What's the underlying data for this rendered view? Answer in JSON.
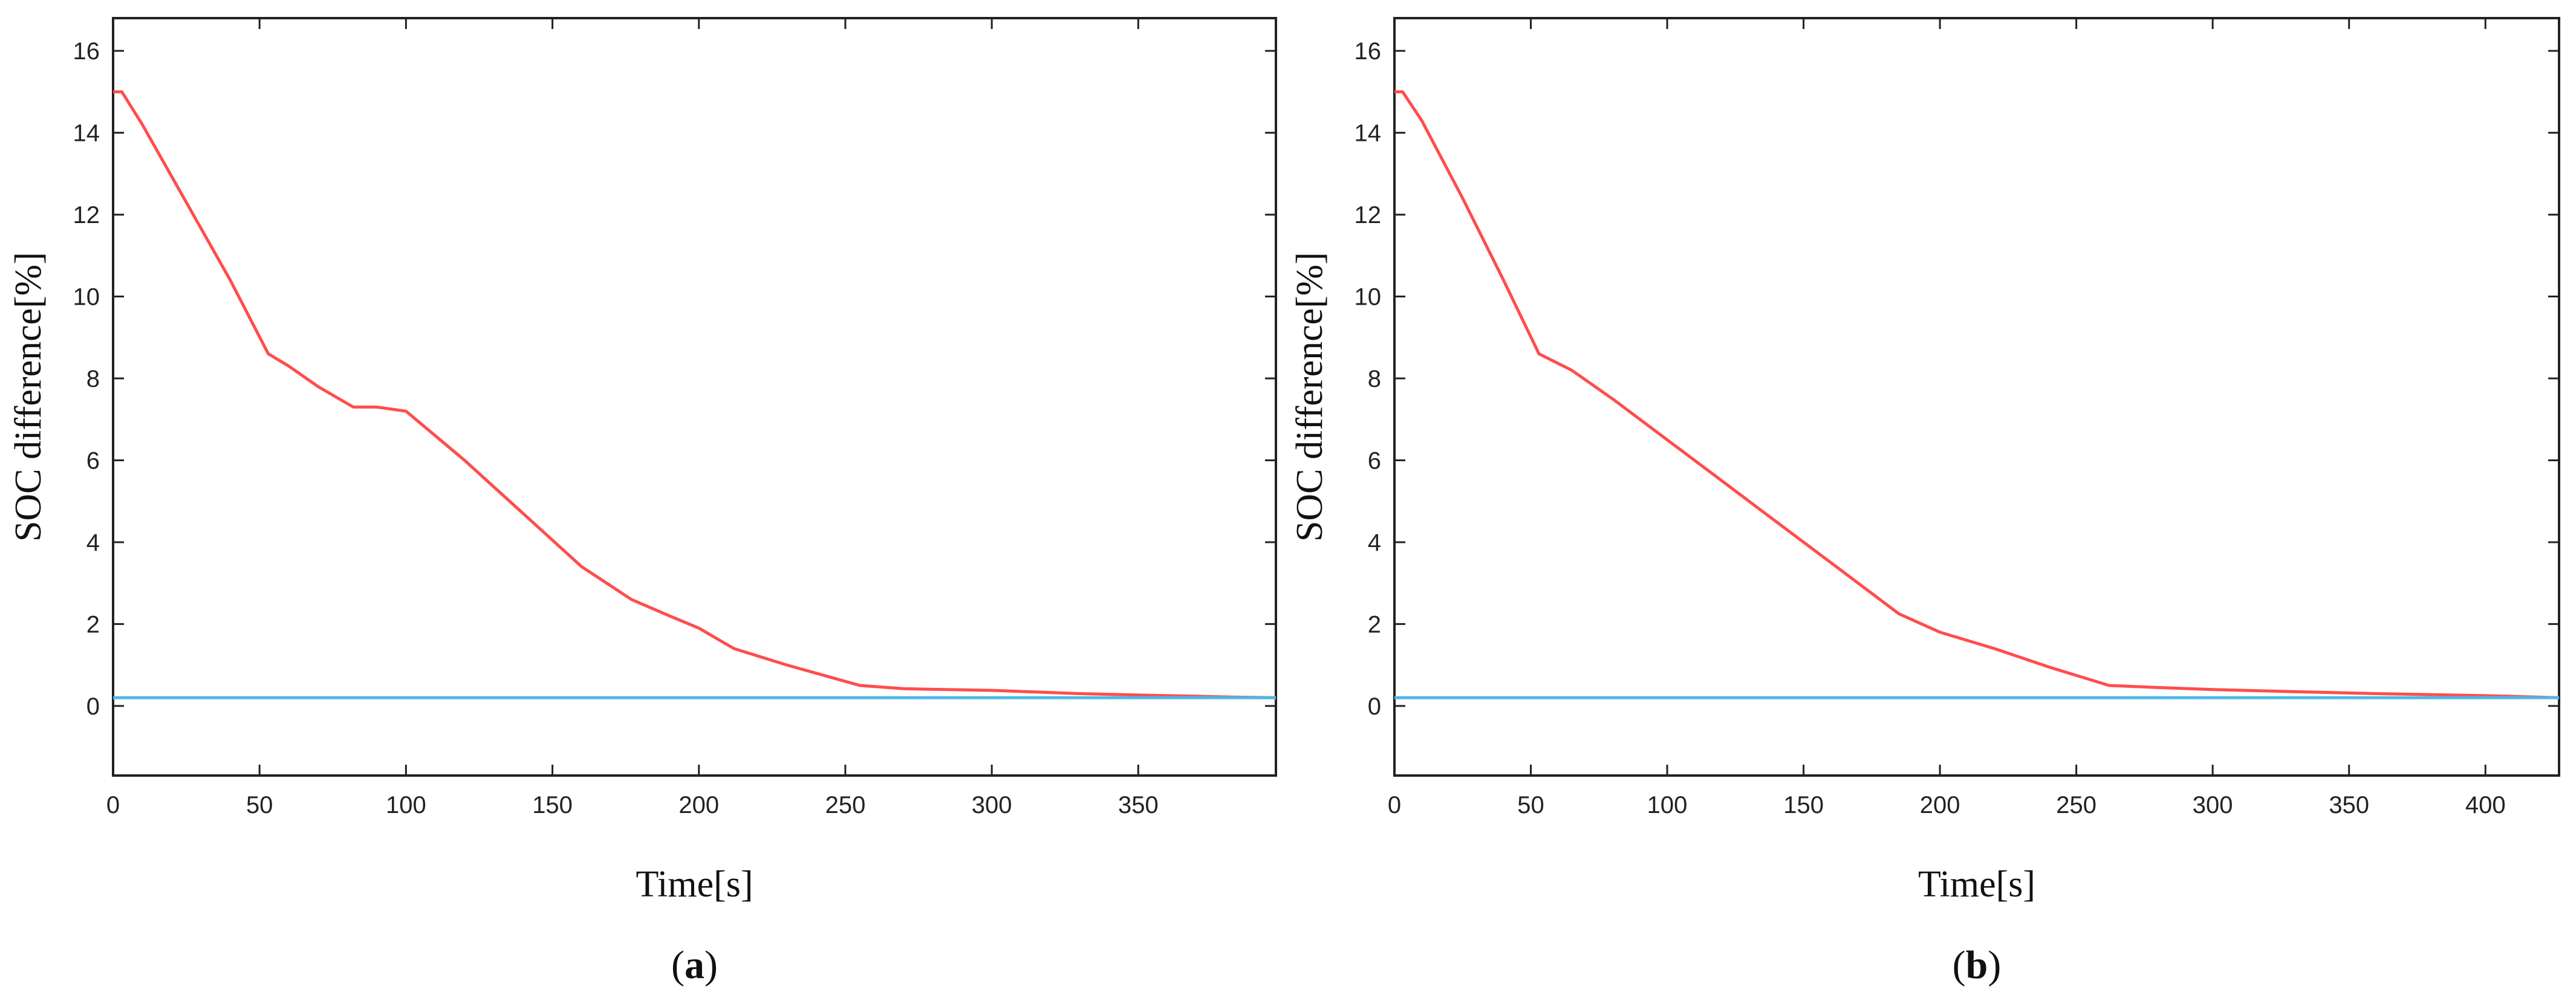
{
  "chart_data": [
    {
      "type": "line",
      "panel_label": {
        "open": "(",
        "letter": "a",
        "close": ")"
      },
      "xlabel": "Time[s]",
      "ylabel": "SOC difference[%]",
      "xlim": [
        0,
        397
      ],
      "ylim": [
        -1.7,
        16.8
      ],
      "xticks": [
        0,
        50,
        100,
        150,
        200,
        250,
        300,
        350
      ],
      "yticks": [
        0,
        2,
        4,
        6,
        8,
        10,
        12,
        14,
        16
      ],
      "grid": false,
      "series": [
        {
          "color": "#ff4d4d",
          "x": [
            0,
            3,
            10,
            25,
            40,
            53,
            60,
            70,
            82,
            90,
            100,
            120,
            140,
            160,
            177,
            190,
            200,
            212,
            230,
            255,
            270,
            300,
            330,
            360,
            380,
            397
          ],
          "y": [
            15.0,
            15.0,
            14.2,
            12.3,
            10.4,
            8.6,
            8.3,
            7.8,
            7.3,
            7.3,
            7.2,
            6.0,
            4.7,
            3.4,
            2.6,
            2.2,
            1.9,
            1.4,
            1.0,
            0.5,
            0.42,
            0.38,
            0.3,
            0.25,
            0.22,
            0.2
          ]
        },
        {
          "color": "#4db8e8",
          "x": [
            0,
            397
          ],
          "y": [
            0.2,
            0.2
          ]
        }
      ]
    },
    {
      "type": "line",
      "panel_label": {
        "open": "(",
        "letter": "b",
        "close": ")"
      },
      "xlabel": "Time[s]",
      "ylabel": "SOC difference[%]",
      "xlim": [
        0,
        427
      ],
      "ylim": [
        -1.7,
        16.8
      ],
      "xticks": [
        0,
        50,
        100,
        150,
        200,
        250,
        300,
        350,
        400
      ],
      "yticks": [
        0,
        2,
        4,
        6,
        8,
        10,
        12,
        14,
        16
      ],
      "grid": false,
      "series": [
        {
          "color": "#ff4d4d",
          "x": [
            0,
            3,
            10,
            25,
            40,
            53,
            65,
            80,
            100,
            120,
            140,
            160,
            185,
            200,
            220,
            240,
            262,
            280,
            300,
            330,
            360,
            400,
            427
          ],
          "y": [
            15.0,
            15.0,
            14.3,
            12.4,
            10.4,
            8.6,
            8.2,
            7.5,
            6.5,
            5.5,
            4.5,
            3.5,
            2.25,
            1.8,
            1.4,
            0.95,
            0.5,
            0.45,
            0.4,
            0.35,
            0.3,
            0.25,
            0.2
          ]
        },
        {
          "color": "#4db8e8",
          "x": [
            0,
            427
          ],
          "y": [
            0.2,
            0.2
          ]
        }
      ]
    }
  ]
}
